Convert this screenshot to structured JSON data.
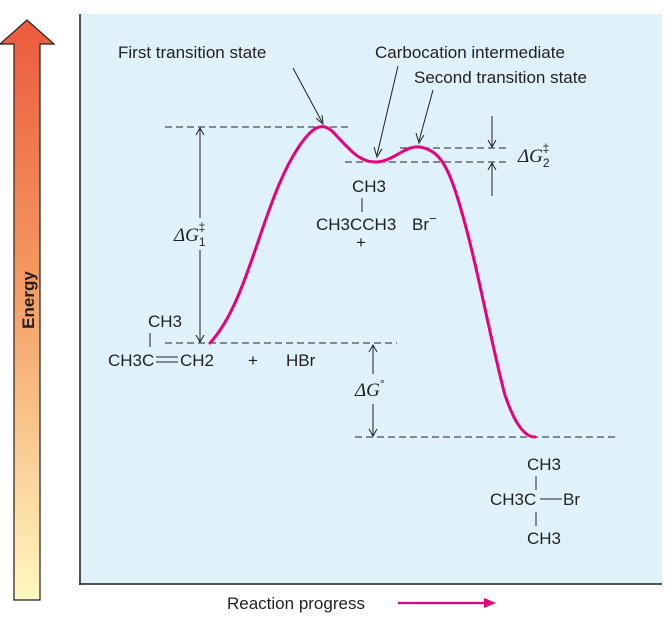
{
  "axes": {
    "y_label": "Energy",
    "x_label": "Reaction progress"
  },
  "labels": {
    "first_ts": "First transition state",
    "carbocation": "Carbocation intermediate",
    "second_ts": "Second transition state"
  },
  "energy_terms": {
    "dg1_symbol": "ΔG",
    "dg1_subscript": "1",
    "dg1_sup": "‡",
    "dg2_symbol": "ΔG",
    "dg2_subscript": "2",
    "dg2_sup": "‡",
    "dg0_symbol": "ΔG",
    "dg0_sup": "°"
  },
  "reactants": {
    "methyl": "CH3",
    "chain_left": "CH3C",
    "chain_right": "CH2",
    "plus": "+",
    "reagent": "HBr"
  },
  "intermediate": {
    "methyl": "CH3",
    "chain": "CH3CCH3",
    "charge": "+",
    "counterion": "Br",
    "counterion_charge": "−"
  },
  "product": {
    "methyl_top": "CH3",
    "chain_left": "CH3C",
    "chain_right": "Br",
    "methyl_bottom": "CH3"
  },
  "colors": {
    "curve": "#e6007e",
    "panel": "#dff1fb",
    "arrow_top": "#ec5a3c",
    "arrow_bottom": "#fff8c0",
    "progress_arrow": "#e6007e"
  }
}
